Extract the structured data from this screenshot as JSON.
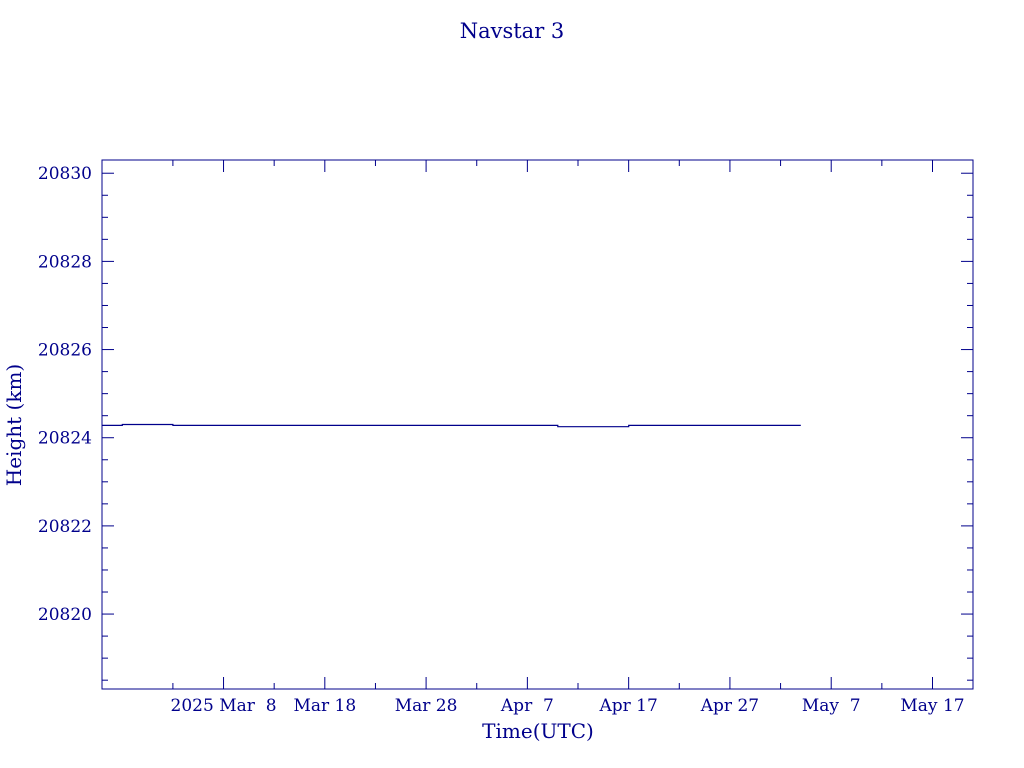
{
  "chart_data": {
    "type": "line",
    "title": "Navstar 3",
    "xlabel": "Time(UTC)",
    "ylabel": "Height (km)",
    "x_tick_labels": [
      "2025 Mar  8",
      "Mar 18",
      "Mar 28",
      "Apr  7",
      "Apr 17",
      "Apr 27",
      "May  7",
      "May 17"
    ],
    "x_ticks": [
      "2025-03-08",
      "2025-03-18",
      "2025-03-28",
      "2025-04-07",
      "2025-04-17",
      "2025-04-27",
      "2025-05-07",
      "2025-05-17"
    ],
    "xlim": [
      "2025-02-24",
      "2025-05-21"
    ],
    "y_tick_labels": [
      "20820",
      "20822",
      "20824",
      "20826",
      "20828",
      "20830"
    ],
    "ylim": [
      20818.3,
      20830.3
    ],
    "grid": false,
    "color": "#00008b",
    "series": [
      {
        "x": [
          "2025-02-24",
          "2025-02-26",
          "2025-02-26",
          "2025-03-03",
          "2025-03-03",
          "2025-04-10",
          "2025-04-10",
          "2025-04-17",
          "2025-04-17",
          "2025-05-04"
        ],
        "values": [
          20824.28,
          20824.28,
          20824.3,
          20824.3,
          20824.28,
          20824.28,
          20824.25,
          20824.25,
          20824.28,
          20824.28
        ]
      }
    ]
  }
}
